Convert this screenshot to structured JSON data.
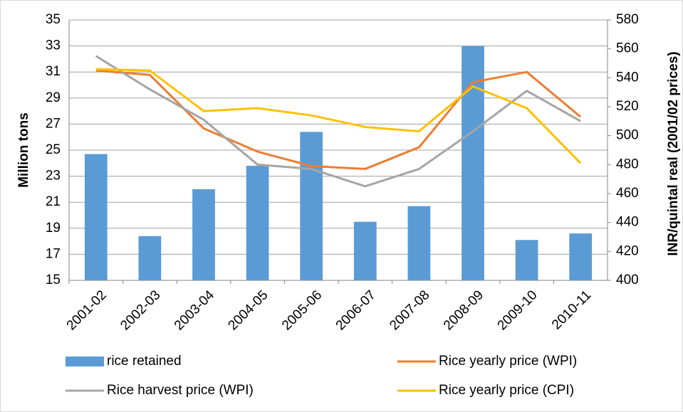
{
  "chart_data": {
    "type": "bar-line",
    "y_label": "Million tons",
    "y2_label": "INR/quintal real (2001/02 prices)",
    "categories": [
      "2001-02",
      "2002-03",
      "2003-04",
      "2004-05",
      "2005-06",
      "2006-07",
      "2007-08",
      "2008-09",
      "2009-10",
      "2010-11"
    ],
    "ylim": [
      15,
      35
    ],
    "yticks": [
      15,
      17,
      19,
      21,
      23,
      25,
      27,
      29,
      31,
      33,
      35
    ],
    "y2lim": [
      400,
      580
    ],
    "y2ticks": [
      400,
      420,
      440,
      460,
      480,
      500,
      520,
      540,
      560,
      580
    ],
    "grid": true,
    "series": [
      {
        "name": "rice retained",
        "type": "bar",
        "color": "#5b9bd5",
        "values": [
          24.7,
          18.4,
          22.0,
          23.8,
          26.4,
          19.5,
          20.7,
          33.0,
          18.1,
          18.6
        ]
      },
      {
        "name": "Rice yearly price (WPI)",
        "type": "line",
        "axis": "y2",
        "color": "#ed7d31",
        "values": [
          545,
          542,
          505,
          489,
          479,
          477,
          492,
          537,
          544,
          513
        ]
      },
      {
        "name": "Rice harvest price (WPI)",
        "type": "line",
        "axis": "y2",
        "color": "#a5a5a5",
        "values": [
          555,
          532,
          511,
          480,
          477,
          465,
          477,
          503,
          531,
          510
        ]
      },
      {
        "name": "Rice yearly price (CPI)",
        "type": "line",
        "axis": "y2",
        "color": "#ffc000",
        "values": [
          546,
          545,
          517,
          519,
          514,
          506,
          503,
          534,
          519,
          481
        ]
      }
    ]
  }
}
